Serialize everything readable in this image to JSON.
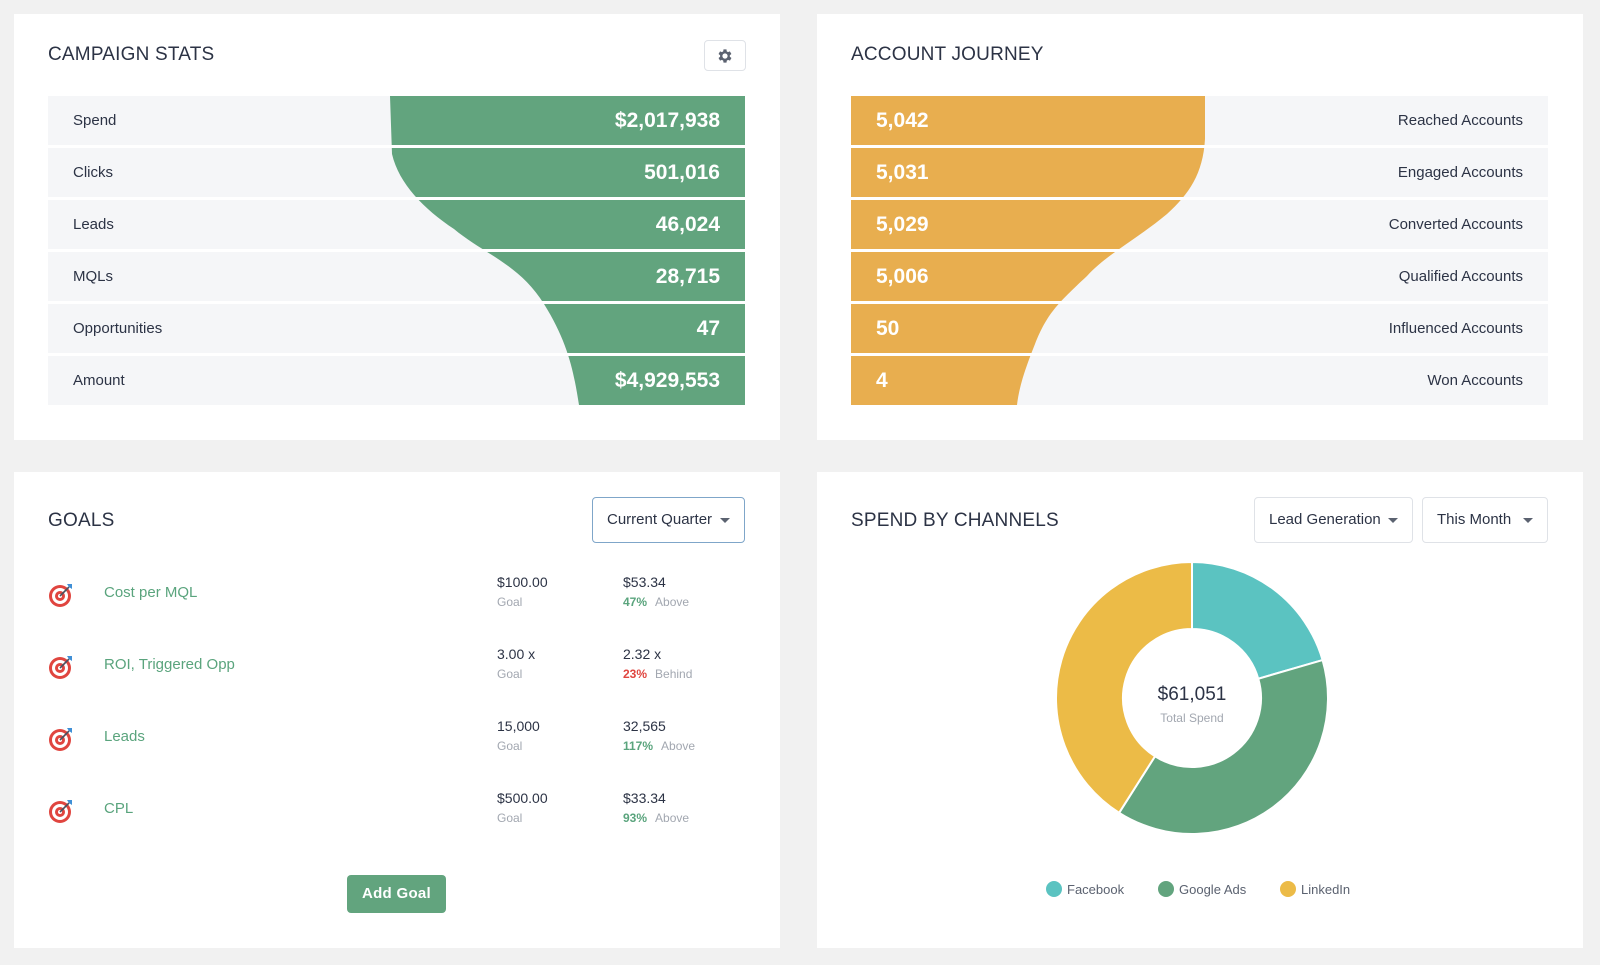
{
  "campaign_stats": {
    "title": "CAMPAIGN STATS",
    "settings_icon": "gear-icon",
    "rows": [
      {
        "label": "Spend",
        "value": "$2,017,938"
      },
      {
        "label": "Clicks",
        "value": "501,016"
      },
      {
        "label": "Leads",
        "value": "46,024"
      },
      {
        "label": "MQLs",
        "value": "28,715"
      },
      {
        "label": "Opportunities",
        "value": "47"
      },
      {
        "label": "Amount",
        "value": "$4,929,553"
      }
    ],
    "color": "#62a47e"
  },
  "account_journey": {
    "title": "ACCOUNT JOURNEY",
    "rows": [
      {
        "label": "Reached Accounts",
        "value": "5,042"
      },
      {
        "label": "Engaged Accounts",
        "value": "5,031"
      },
      {
        "label": "Converted Accounts",
        "value": "5,029"
      },
      {
        "label": "Qualified Accounts",
        "value": "5,006"
      },
      {
        "label": "Influenced Accounts",
        "value": "50"
      },
      {
        "label": "Won Accounts",
        "value": "4"
      }
    ],
    "color": "#e8ae4f"
  },
  "goals": {
    "title": "GOALS",
    "period_select": "Current Quarter",
    "items": [
      {
        "name": "Cost per MQL",
        "goal": "$100.00",
        "goal_label": "Goal",
        "actual": "$53.34",
        "pct": "47%",
        "status": "Above"
      },
      {
        "name": "ROI, Triggered Opp",
        "goal": "3.00 x",
        "goal_label": "Goal",
        "actual": "2.32 x",
        "pct": "23%",
        "status": "Behind"
      },
      {
        "name": "Leads",
        "goal": "15,000",
        "goal_label": "Goal",
        "actual": "32,565",
        "pct": "117%",
        "status": "Above"
      },
      {
        "name": "CPL",
        "goal": "$500.00",
        "goal_label": "Goal",
        "actual": "$33.34",
        "pct": "93%",
        "status": "Above"
      }
    ],
    "add_button": "Add Goal"
  },
  "spend_by_channels": {
    "title": "SPEND BY CHANNELS",
    "type_select": "Lead Generation",
    "period_select": "This Month",
    "total_value": "$61,051",
    "total_label": "Total Spend"
  },
  "chart_data": {
    "type": "pie",
    "categories": [
      "Facebook",
      "Google Ads",
      "LinkedIn"
    ],
    "values": [
      20.5,
      38.5,
      41.0
    ],
    "colors": [
      "#5bc3c1",
      "#62a47e",
      "#ecbb47"
    ],
    "center_value": "$61,051",
    "center_label": "Total Spend",
    "legend": "bottom"
  }
}
